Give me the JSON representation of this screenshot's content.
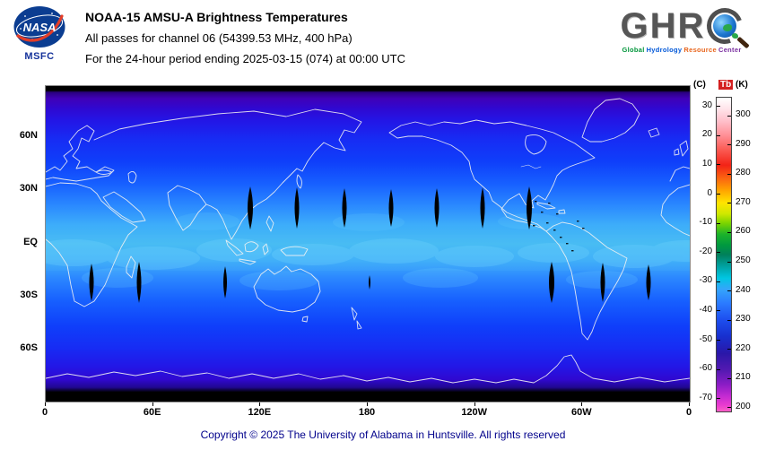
{
  "header": {
    "title": "NOAA-15 AMSU-A Brightness Temperatures",
    "line2": "All passes for channel 06 (54399.53 MHz, 400 hPa)",
    "line3": "For the 24-hour period ending 2025-03-15 (074) at 00:00 UTC",
    "nasa_label": "NASA",
    "msfc_label": "MSFC",
    "ghrc_letters": "GHR",
    "ghrc_name": "GHRC",
    "ghrc_tagline": [
      {
        "text": "Global",
        "color": "#00953a"
      },
      {
        "text": "Hydrology",
        "color": "#0057d8"
      },
      {
        "text": "Resource",
        "color": "#e8641b"
      },
      {
        "text": "Center",
        "color": "#7a2ea0"
      }
    ]
  },
  "map": {
    "lat_labels": [
      "60N",
      "30N",
      "EQ",
      "30S",
      "60S"
    ],
    "lon_labels": [
      "0",
      "60E",
      "120E",
      "180",
      "120W",
      "60W",
      "0"
    ]
  },
  "colorbar": {
    "celsius_header": "(C)",
    "tb_label": "Tb",
    "kelvin_unit": "(K)",
    "celsius_ticks": [
      "30",
      "20",
      "10",
      "0",
      "-10",
      "-20",
      "-30",
      "-40",
      "-50",
      "-60",
      "-70"
    ],
    "kelvin_ticks": [
      "300",
      "290",
      "280",
      "270",
      "260",
      "250",
      "240",
      "230",
      "220",
      "210",
      "200"
    ]
  },
  "footer": {
    "copyright": "Copyright © 2025 The University of Alabama in Huntsville. All rights reserved"
  }
}
